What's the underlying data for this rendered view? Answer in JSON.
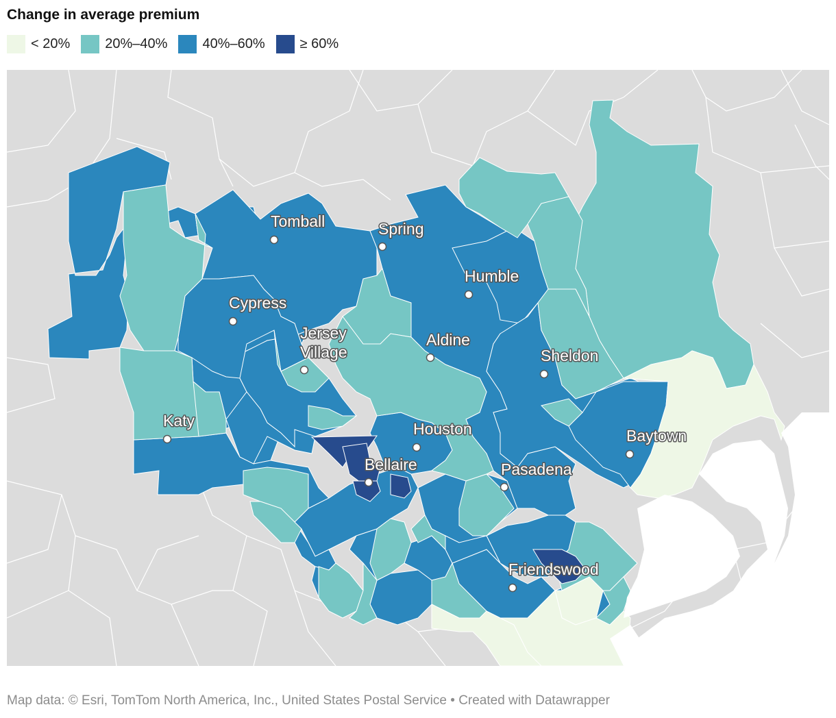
{
  "title": "Change in average premium",
  "legend": [
    {
      "label": "< 20%",
      "color": "#eef7e6"
    },
    {
      "label": "20%–40%",
      "color": "#76c6c4"
    },
    {
      "label": "40%–60%",
      "color": "#2b87bd"
    },
    {
      "label": "≥ 60%",
      "color": "#274b8d"
    }
  ],
  "cities": {
    "tomball": "Tomball",
    "spring": "Spring",
    "humble": "Humble",
    "cypress": "Cypress",
    "jersey_village_1": "Jersey",
    "jersey_village_2": "Village",
    "aldine": "Aldine",
    "sheldon": "Sheldon",
    "katy": "Katy",
    "houston": "Houston",
    "baytown": "Baytown",
    "bellaire": "Bellaire",
    "pasadena": "Pasadena",
    "friendswood": "Friendswood"
  },
  "footer": {
    "source": "Map data: © Esri, TomTom North America, Inc., United States Postal Service",
    "separator": "•",
    "credit": "Created with Datawrapper"
  }
}
